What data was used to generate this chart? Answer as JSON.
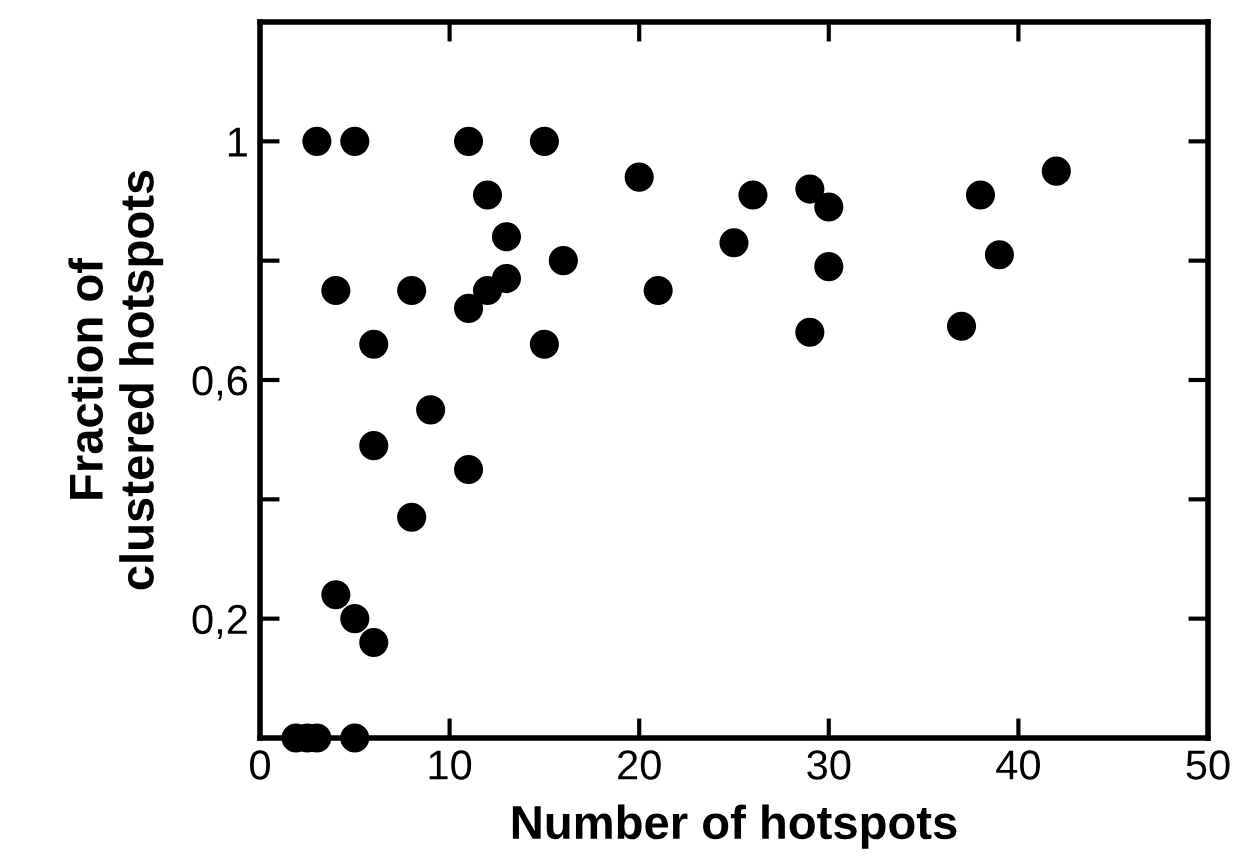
{
  "chart_data": {
    "type": "scatter",
    "xlabel": "Number of hotspots",
    "ylabel": "Fraction of\nclustered hotspots",
    "x": [
      1.9,
      2.5,
      3,
      5,
      3,
      5,
      11,
      15,
      20,
      26,
      12,
      13,
      25,
      16,
      4,
      8,
      11,
      12,
      13,
      21,
      6,
      15,
      9,
      6,
      11,
      8,
      4,
      5,
      6,
      29,
      30,
      30,
      29,
      38,
      39,
      37,
      42
    ],
    "values": [
      0,
      0,
      0,
      0,
      1,
      1,
      1,
      1,
      0.94,
      0.91,
      0.91,
      0.84,
      0.83,
      0.8,
      0.75,
      0.75,
      0.72,
      0.75,
      0.77,
      0.75,
      0.66,
      0.66,
      0.55,
      0.49,
      0.45,
      0.37,
      0.24,
      0.2,
      0.16,
      0.92,
      0.89,
      0.79,
      0.68,
      0.91,
      0.81,
      0.69,
      0.95
    ],
    "color": "#000000",
    "marker": "circle",
    "grid": false,
    "xlim": [
      0,
      50
    ],
    "xticks": [
      0,
      10,
      20,
      30,
      40,
      50
    ],
    "ylim": [
      0,
      1.2
    ],
    "yticks": [
      {
        "value": 0.2,
        "label": "0,2"
      },
      {
        "value": 0.4,
        "label": null
      },
      {
        "value": 0.6,
        "label": "0,6"
      },
      {
        "value": 0.8,
        "label": null
      },
      {
        "value": 1,
        "label": "1"
      }
    ]
  }
}
